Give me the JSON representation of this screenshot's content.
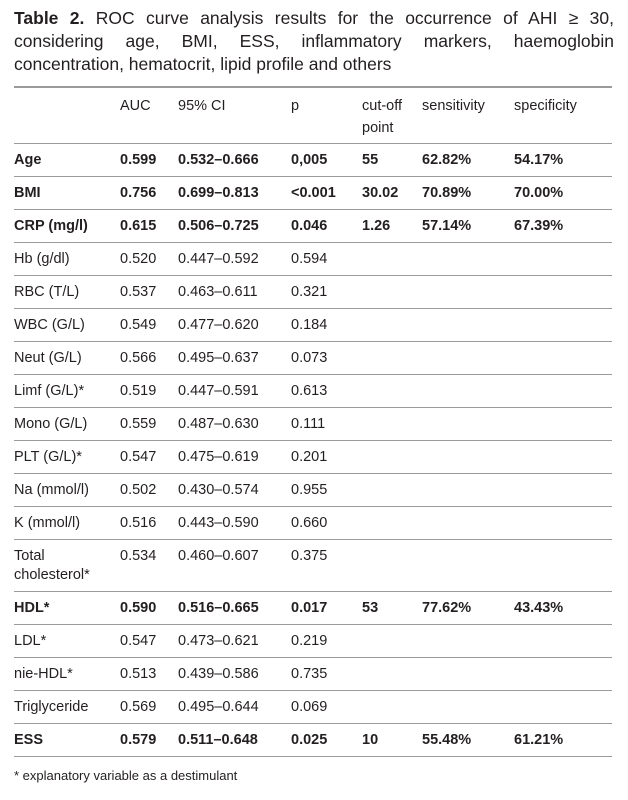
{
  "caption": {
    "label": "Table 2.",
    "text": " ROC curve analysis results for the occurrence of AHI ≥ 30, considering age, BMI, ESS, inflammatory markers, haemoglobin concentration, hematocrit, lipid profile and others"
  },
  "table": {
    "headers": [
      "",
      "AUC",
      "95% CI",
      "p",
      "cut-off point",
      "sensitivity",
      "specificity"
    ],
    "rows": [
      {
        "cells": [
          "Age",
          "0.599",
          "0.532–0.666",
          "0,005",
          "55",
          "62.82%",
          "54.17%"
        ],
        "bold": true
      },
      {
        "cells": [
          "BMI",
          "0.756",
          "0.699–0.813",
          "<0.001",
          "30.02",
          "70.89%",
          "70.00%"
        ],
        "bold": true
      },
      {
        "cells": [
          "CRP (mg/l)",
          "0.615",
          "0.506–0.725",
          "0.046",
          "1.26",
          "57.14%",
          "67.39%"
        ],
        "bold": true
      },
      {
        "cells": [
          "Hb (g/dl)",
          "0.520",
          "0.447–0.592",
          "0.594",
          "",
          "",
          ""
        ]
      },
      {
        "cells": [
          "RBC (T/L)",
          "0.537",
          "0.463–0.611",
          "0.321",
          "",
          "",
          ""
        ]
      },
      {
        "cells": [
          "WBC (G/L)",
          "0.549",
          "0.477–0.620",
          "0.184",
          "",
          "",
          ""
        ]
      },
      {
        "cells": [
          "Neut (G/L)",
          "0.566",
          "0.495–0.637",
          "0.073",
          "",
          "",
          ""
        ]
      },
      {
        "cells": [
          "Limf (G/L)*",
          "0.519",
          "0.447–0.591",
          "0.613",
          "",
          "",
          ""
        ]
      },
      {
        "cells": [
          "Mono (G/L)",
          "0.559",
          "0.487–0.630",
          "0.111",
          "",
          "",
          ""
        ]
      },
      {
        "cells": [
          "PLT (G/L)*",
          "0.547",
          "0.475–0.619",
          "0.201",
          "",
          "",
          ""
        ]
      },
      {
        "cells": [
          "Na (mmol/l)",
          "0.502",
          "0.430–0.574",
          "0.955",
          "",
          "",
          ""
        ]
      },
      {
        "cells": [
          "K (mmol/l)",
          "0.516",
          "0.443–0.590",
          "0.660",
          "",
          "",
          ""
        ]
      },
      {
        "cells": [
          "Total cholesterol*",
          "0.534",
          "0.460–0.607",
          "0.375",
          "",
          "",
          ""
        ]
      },
      {
        "cells": [
          "HDL*",
          "0.590",
          "0.516–0.665",
          "0.017",
          "53",
          "77.62%",
          "43.43%"
        ],
        "bold": true
      },
      {
        "cells": [
          "LDL*",
          "0.547",
          "0.473–0.621",
          "0.219",
          "",
          "",
          ""
        ]
      },
      {
        "cells": [
          "nie-HDL*",
          "0.513",
          "0.439–0.586",
          "0.735",
          "",
          "",
          ""
        ]
      },
      {
        "cells": [
          "Triglyceride",
          "0.569",
          "0.495–0.644",
          "0.069",
          "",
          "",
          ""
        ]
      },
      {
        "cells": [
          "ESS",
          "0.579",
          "0.511–0.648",
          "0.025",
          "10",
          "55.48%",
          "61.21%"
        ],
        "bold": true
      }
    ]
  },
  "footnote": "* explanatory variable as a destimulant"
}
